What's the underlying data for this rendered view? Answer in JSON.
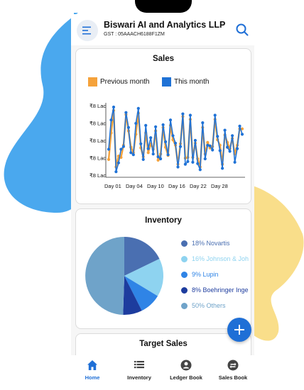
{
  "header": {
    "company_name": "Biswari AI and Analytics LLP",
    "gst": "GST : 05AAACH6188F1ZM"
  },
  "sales": {
    "title": "Sales",
    "legend": [
      {
        "label": "Previous month",
        "color": "#f5a23b"
      },
      {
        "label": "This month",
        "color": "#1f72d6"
      }
    ]
  },
  "chart_data": [
    {
      "type": "line",
      "title": "Sales",
      "y_tick_labels": [
        "₹8 Lac",
        "₹8 Lac",
        "₹8 Lac",
        "₹8 Lac",
        "₹8 Lac"
      ],
      "x_tick_labels": [
        "Day 01",
        "Day 04",
        "Day 10",
        "Day 16",
        "Day 22",
        "Day 28"
      ],
      "legend_position": "top",
      "series": [
        {
          "name": "Previous month",
          "color": "#f5a23b",
          "values": [
            23,
            62,
            95,
            12,
            28,
            26,
            44,
            89,
            65,
            41,
            33,
            60,
            91,
            40,
            27,
            62,
            33,
            46,
            38,
            65,
            22,
            31,
            70,
            41,
            29,
            73,
            52,
            44,
            16,
            46,
            86,
            25,
            26,
            82,
            26,
            47,
            24,
            12,
            70,
            31,
            48,
            40,
            42,
            82,
            52,
            44,
            16,
            59,
            48,
            39,
            54,
            31,
            44,
            68,
            68
          ]
        },
        {
          "name": "This month",
          "color": "#1f72d6",
          "values": [
            38,
            81,
            100,
            5,
            18,
            38,
            42,
            92,
            70,
            33,
            30,
            76,
            98,
            46,
            23,
            73,
            39,
            55,
            31,
            71,
            27,
            24,
            74,
            49,
            30,
            81,
            58,
            47,
            12,
            42,
            90,
            16,
            20,
            88,
            19,
            51,
            17,
            8,
            77,
            24,
            44,
            43,
            37,
            88,
            57,
            36,
            10,
            66,
            41,
            35,
            58,
            19,
            39,
            72,
            60
          ]
        }
      ]
    },
    {
      "type": "pie",
      "title": "Inventory",
      "slices": [
        {
          "label": "18% Novartis",
          "value": 18,
          "color": "#4a6fb1"
        },
        {
          "label": "16% Johnson & Joh",
          "value": 16,
          "color": "#8ed3f0"
        },
        {
          "label": "9% Lupin",
          "value": 9,
          "color": "#2f84e6"
        },
        {
          "label": "8% Boehringer Inge",
          "value": 8,
          "color": "#1d3c9e"
        },
        {
          "label": "50% Others",
          "value": 50,
          "color": "#6fa3c9"
        }
      ],
      "legend_position": "right"
    }
  ],
  "inventory": {
    "title": "Inventory"
  },
  "target": {
    "title": "Target Sales"
  },
  "nav": [
    {
      "label": "Home",
      "icon": "home-icon",
      "active": true
    },
    {
      "label": "Inventory",
      "icon": "list-icon",
      "active": false
    },
    {
      "label": "Ledger Book",
      "icon": "person-icon",
      "active": false
    },
    {
      "label": "Sales Book",
      "icon": "swap-icon",
      "active": false
    }
  ],
  "colors": {
    "accent": "#1f6fd6",
    "left_blob": "#4aa8ee",
    "right_blob": "#f9de8a"
  }
}
